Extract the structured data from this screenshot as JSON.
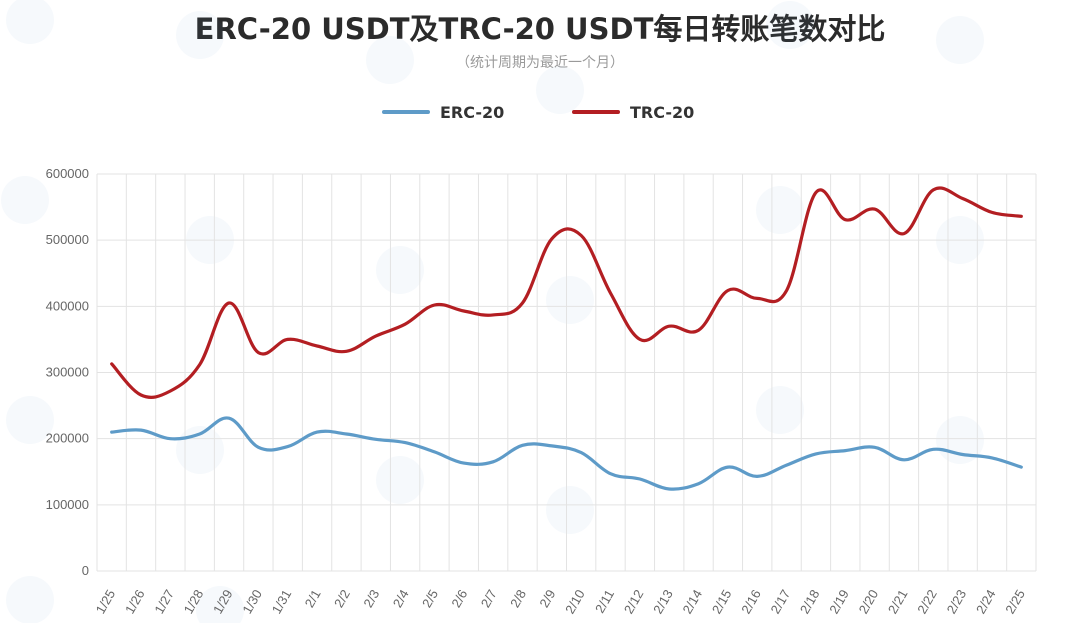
{
  "chart_data": {
    "type": "line",
    "title": "ERC-20 USDT及TRC-20 USDT每日转账笔数对比",
    "subtitle": "（统计周期为最近一个月）",
    "xlabel": "",
    "ylabel": "",
    "ylim": [
      0,
      600000
    ],
    "yticks": [
      0,
      100000,
      200000,
      300000,
      400000,
      500000,
      600000
    ],
    "grid": true,
    "legend_position": "top-center",
    "categories": [
      "1/25",
      "1/26",
      "1/27",
      "1/28",
      "1/29",
      "1/30",
      "1/31",
      "2/1",
      "2/2",
      "2/3",
      "2/4",
      "2/5",
      "2/6",
      "2/7",
      "2/8",
      "2/9",
      "2/10",
      "2/11",
      "2/12",
      "2/13",
      "2/14",
      "2/15",
      "2/16",
      "2/17",
      "2/18",
      "2/19",
      "2/20",
      "2/21",
      "2/22",
      "2/23",
      "2/24",
      "2/25"
    ],
    "series": [
      {
        "name": "ERC-20",
        "color": "#5e9bc8",
        "values": [
          210000,
          213000,
          200000,
          207000,
          231000,
          187000,
          188000,
          210000,
          207000,
          199000,
          194000,
          180000,
          163000,
          165000,
          190000,
          189000,
          179000,
          147000,
          139000,
          124000,
          132000,
          157000,
          143000,
          160000,
          177000,
          182000,
          187000,
          168000,
          184000,
          176000,
          171000,
          157000
        ]
      },
      {
        "name": "TRC-20",
        "color": "#b31e22",
        "values": [
          313000,
          266000,
          272000,
          312000,
          405000,
          330000,
          350000,
          340000,
          332000,
          355000,
          373000,
          402000,
          393000,
          387000,
          405000,
          502000,
          507000,
          420000,
          350000,
          370000,
          364000,
          424000,
          412000,
          424000,
          572000,
          531000,
          547000,
          510000,
          576000,
          563000,
          542000,
          536000
        ]
      }
    ]
  }
}
